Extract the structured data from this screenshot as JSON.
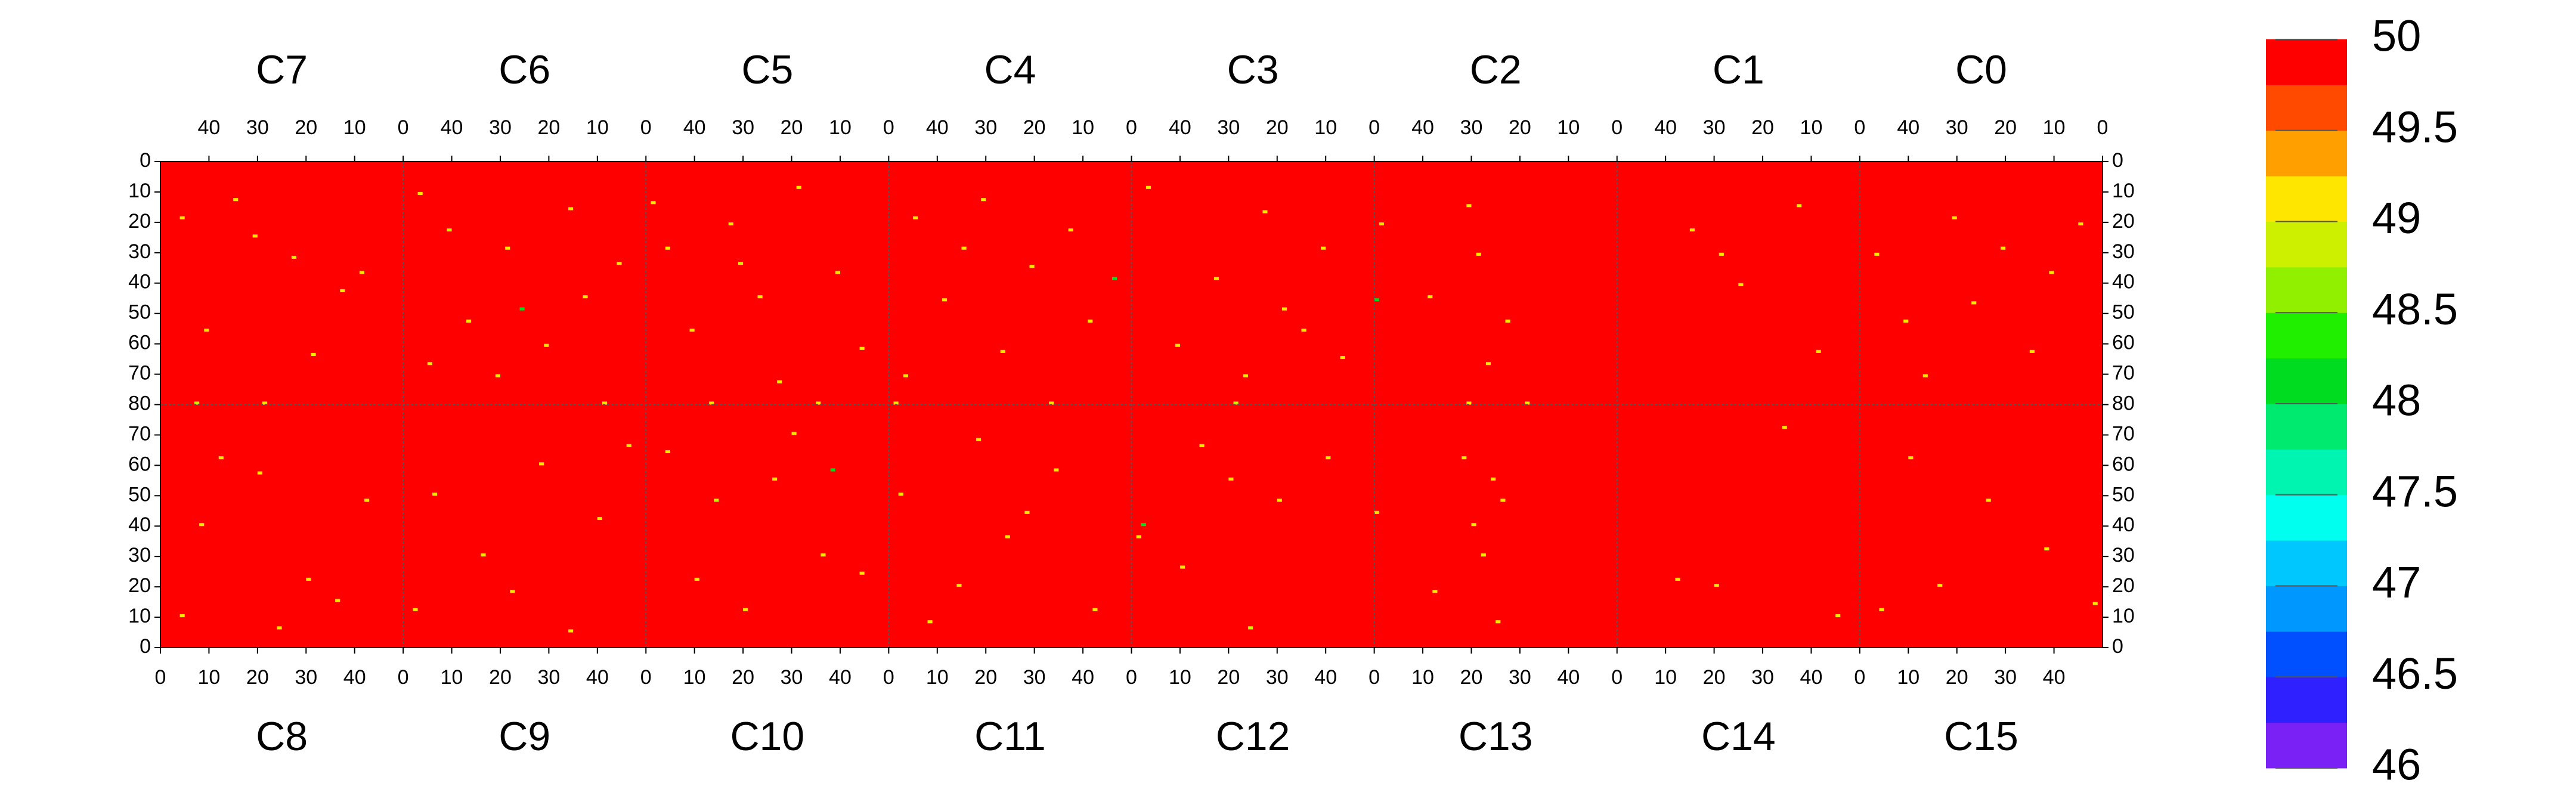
{
  "chart_data": {
    "type": "heatmap",
    "top_panels": {
      "labels": [
        "C7",
        "C6",
        "C5",
        "C4",
        "C3",
        "C2",
        "C1",
        "C0"
      ],
      "x_reversed": true,
      "y_inverted": true
    },
    "bottom_panels": {
      "labels": [
        "C8",
        "C9",
        "C10",
        "C11",
        "C12",
        "C13",
        "C14",
        "C15"
      ],
      "x_reversed": false,
      "y_inverted": false
    },
    "xlim": [
      0,
      50
    ],
    "xticks": [
      0,
      10,
      20,
      30,
      40
    ],
    "ylim": [
      0,
      80
    ],
    "yticks": [
      0,
      10,
      20,
      30,
      40,
      50,
      60,
      70,
      80
    ],
    "background_value": 50,
    "cells": [
      [
        "C7",
        45,
        18,
        49.1
      ],
      [
        "C7",
        30,
        24,
        49.1
      ],
      [
        "C7",
        22,
        31,
        49.1
      ],
      [
        "C7",
        12,
        42,
        49.1
      ],
      [
        "C7",
        40,
        55,
        49.1
      ],
      [
        "C7",
        18,
        63,
        49.1
      ],
      [
        "C7",
        42,
        79,
        48.9
      ],
      [
        "C7",
        28,
        79,
        49.1
      ],
      [
        "C7",
        8,
        36,
        49.1
      ],
      [
        "C7",
        34,
        12,
        49.1
      ],
      [
        "C6",
        46,
        10,
        49.1
      ],
      [
        "C6",
        28,
        28,
        49.1
      ],
      [
        "C6",
        12,
        44,
        49.1
      ],
      [
        "C6",
        36,
        52,
        49.1
      ],
      [
        "C6",
        20,
        60,
        49.1
      ],
      [
        "C6",
        5,
        33,
        49.1
      ],
      [
        "C6",
        40,
        22,
        48.9
      ],
      [
        "C6",
        15,
        15,
        49.1
      ],
      [
        "C6",
        30,
        70,
        49.1
      ],
      [
        "C6",
        8,
        79,
        49.1
      ],
      [
        "C6",
        25,
        48,
        48.1
      ],
      [
        "C6",
        44,
        66,
        49.1
      ],
      [
        "C5",
        48,
        13,
        49.1
      ],
      [
        "C5",
        32,
        20,
        49.1
      ],
      [
        "C5",
        18,
        8,
        49.1
      ],
      [
        "C5",
        10,
        36,
        49.1
      ],
      [
        "C5",
        26,
        44,
        49.1
      ],
      [
        "C5",
        40,
        55,
        49.1
      ],
      [
        "C5",
        5,
        61,
        49.1
      ],
      [
        "C5",
        22,
        72,
        49.1
      ],
      [
        "C5",
        36,
        79,
        49.1
      ],
      [
        "C5",
        14,
        79,
        49.1
      ],
      [
        "C5",
        30,
        33,
        48.9
      ],
      [
        "C5",
        45,
        28,
        49.1
      ],
      [
        "C4",
        44,
        18,
        49.1
      ],
      [
        "C4",
        30,
        12,
        49.1
      ],
      [
        "C4",
        12,
        22,
        49.1
      ],
      [
        "C4",
        20,
        34,
        49.1
      ],
      [
        "C4",
        38,
        45,
        49.1
      ],
      [
        "C4",
        8,
        52,
        49.1
      ],
      [
        "C4",
        26,
        62,
        49.1
      ],
      [
        "C4",
        46,
        70,
        49.1
      ],
      [
        "C4",
        48,
        79,
        49.1
      ],
      [
        "C4",
        16,
        79,
        49.1
      ],
      [
        "C4",
        3,
        38,
        48.1
      ],
      [
        "C4",
        34,
        28,
        49.1
      ],
      [
        "C3",
        46,
        8,
        49.1
      ],
      [
        "C3",
        22,
        16,
        49.1
      ],
      [
        "C3",
        10,
        28,
        49.1
      ],
      [
        "C3",
        32,
        38,
        49.1
      ],
      [
        "C3",
        18,
        48,
        49.1
      ],
      [
        "C3",
        40,
        60,
        49.1
      ],
      [
        "C3",
        26,
        70,
        49.1
      ],
      [
        "C3",
        28,
        79,
        48.9
      ],
      [
        "C3",
        6,
        64,
        49.1
      ],
      [
        "C3",
        14,
        55,
        49.1
      ],
      [
        "C2",
        48,
        20,
        49.1
      ],
      [
        "C2",
        30,
        14,
        49.1
      ],
      [
        "C2",
        28,
        30,
        49.1
      ],
      [
        "C2",
        38,
        44,
        49.1
      ],
      [
        "C2",
        22,
        52,
        49.1
      ],
      [
        "C2",
        26,
        66,
        49.1
      ],
      [
        "C2",
        18,
        79,
        49.1
      ],
      [
        "C2",
        30,
        79,
        49.1
      ],
      [
        "C2",
        49,
        45,
        48.1
      ],
      [
        "C1",
        34,
        22,
        49.1
      ],
      [
        "C1",
        28,
        30,
        49.1
      ],
      [
        "C1",
        12,
        14,
        49.1
      ],
      [
        "C1",
        24,
        40,
        49.1
      ],
      [
        "C1",
        8,
        62,
        49.1
      ],
      [
        "C0",
        46,
        30,
        49.1
      ],
      [
        "C0",
        30,
        18,
        49.1
      ],
      [
        "C0",
        20,
        28,
        49.1
      ],
      [
        "C0",
        10,
        36,
        49.1
      ],
      [
        "C0",
        4,
        20,
        49.1
      ],
      [
        "C0",
        26,
        46,
        49.1
      ],
      [
        "C0",
        40,
        52,
        49.1
      ],
      [
        "C0",
        14,
        62,
        49.1
      ],
      [
        "C0",
        36,
        70,
        49.1
      ],
      [
        "C8",
        8,
        40,
        49.1
      ],
      [
        "C8",
        20,
        57,
        49.1
      ],
      [
        "C8",
        30,
        22,
        49.1
      ],
      [
        "C8",
        36,
        15,
        49.1
      ],
      [
        "C8",
        12,
        62,
        49.1
      ],
      [
        "C8",
        42,
        48,
        49.1
      ],
      [
        "C8",
        24,
        6,
        49.1
      ],
      [
        "C8",
        4,
        10,
        49.1
      ],
      [
        "C9",
        6,
        50,
        49.1
      ],
      [
        "C9",
        16,
        30,
        49.1
      ],
      [
        "C9",
        28,
        60,
        49.1
      ],
      [
        "C9",
        40,
        42,
        49.1
      ],
      [
        "C9",
        22,
        18,
        49.1
      ],
      [
        "C9",
        34,
        5,
        49.1
      ],
      [
        "C9",
        46,
        66,
        49.1
      ],
      [
        "C9",
        2,
        12,
        49.1
      ],
      [
        "C10",
        4,
        64,
        49.1
      ],
      [
        "C10",
        14,
        48,
        48.9
      ],
      [
        "C10",
        26,
        55,
        49.1
      ],
      [
        "C10",
        36,
        30,
        49.1
      ],
      [
        "C10",
        20,
        12,
        49.1
      ],
      [
        "C10",
        44,
        24,
        49.1
      ],
      [
        "C10",
        30,
        70,
        49.1
      ],
      [
        "C10",
        10,
        22,
        49.1
      ],
      [
        "C10",
        38,
        58,
        48.1
      ],
      [
        "C11",
        2,
        50,
        49.1
      ],
      [
        "C11",
        14,
        20,
        49.1
      ],
      [
        "C11",
        24,
        36,
        49.1
      ],
      [
        "C11",
        34,
        58,
        49.1
      ],
      [
        "C11",
        42,
        12,
        49.1
      ],
      [
        "C11",
        8,
        8,
        49.1
      ],
      [
        "C11",
        28,
        44,
        49.1
      ],
      [
        "C11",
        18,
        68,
        49.1
      ],
      [
        "C12",
        1,
        36,
        49.1
      ],
      [
        "C12",
        10,
        26,
        49.1
      ],
      [
        "C12",
        20,
        55,
        49.1
      ],
      [
        "C12",
        30,
        48,
        49.1
      ],
      [
        "C12",
        24,
        6,
        48.9
      ],
      [
        "C12",
        40,
        62,
        49.1
      ],
      [
        "C12",
        2,
        40,
        48.1
      ],
      [
        "C12",
        14,
        66,
        49.1
      ],
      [
        "C13",
        20,
        40,
        49.1
      ],
      [
        "C13",
        24,
        55,
        49.1
      ],
      [
        "C13",
        18,
        62,
        49.1
      ],
      [
        "C13",
        26,
        48,
        49.1
      ],
      [
        "C13",
        12,
        18,
        49.1
      ],
      [
        "C13",
        0,
        44,
        49.1
      ],
      [
        "C13",
        22,
        30,
        49.1
      ],
      [
        "C13",
        25,
        8,
        49.1
      ],
      [
        "C14",
        20,
        20,
        49.1
      ],
      [
        "C14",
        12,
        22,
        49.1
      ],
      [
        "C14",
        34,
        72,
        49.1
      ],
      [
        "C14",
        45,
        10,
        49.1
      ],
      [
        "C15",
        4,
        12,
        49.1
      ],
      [
        "C15",
        16,
        20,
        49.1
      ],
      [
        "C15",
        26,
        48,
        49.1
      ],
      [
        "C15",
        38,
        32,
        49.1
      ],
      [
        "C15",
        10,
        62,
        49.1
      ],
      [
        "C15",
        48,
        14,
        49.1
      ]
    ],
    "colorbar": {
      "levels": [
        46,
        46.25,
        46.5,
        46.75,
        47,
        47.25,
        47.5,
        47.75,
        48,
        48.25,
        48.5,
        48.75,
        49,
        49.25,
        49.5,
        49.75,
        50
      ],
      "colors": [
        "#7a22f5",
        "#2e20ff",
        "#0050ff",
        "#0098ff",
        "#00c8ff",
        "#00ffee",
        "#00f5b0",
        "#00ea70",
        "#00dd20",
        "#20f000",
        "#90f000",
        "#ccf000",
        "#ffe600",
        "#ffa000",
        "#ff4a00",
        "#ff0000"
      ],
      "ticks": [
        46,
        46.5,
        47,
        47.5,
        48,
        48.5,
        49,
        49.5,
        50
      ]
    }
  }
}
